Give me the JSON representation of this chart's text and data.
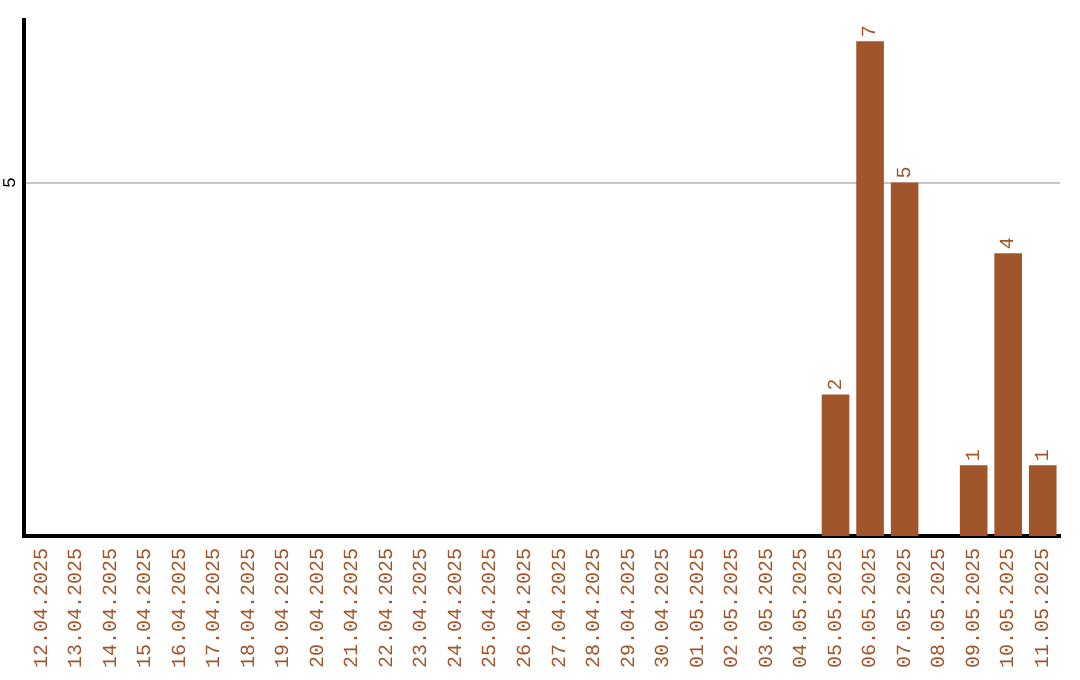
{
  "chart_data": {
    "type": "bar",
    "categories": [
      "12.04.2025",
      "13.04.2025",
      "14.04.2025",
      "15.04.2025",
      "16.04.2025",
      "17.04.2025",
      "18.04.2025",
      "19.04.2025",
      "20.04.2025",
      "21.04.2025",
      "22.04.2025",
      "23.04.2025",
      "24.04.2025",
      "25.04.2025",
      "26.04.2025",
      "27.04.2025",
      "28.04.2025",
      "29.04.2025",
      "30.04.2025",
      "01.05.2025",
      "02.05.2025",
      "03.05.2025",
      "04.05.2025",
      "05.05.2025",
      "06.05.2025",
      "07.05.2025",
      "08.05.2025",
      "09.05.2025",
      "10.05.2025",
      "11.05.2025"
    ],
    "values": [
      null,
      null,
      null,
      null,
      null,
      null,
      null,
      null,
      null,
      null,
      null,
      null,
      null,
      null,
      null,
      null,
      null,
      null,
      null,
      null,
      null,
      null,
      null,
      2,
      7,
      5,
      null,
      1,
      4,
      1
    ],
    "data_labels": true,
    "color": "#a0562a",
    "ylim": [
      0,
      7.3
    ],
    "yticks": [
      5
    ],
    "grid": "y",
    "legend": false
  }
}
